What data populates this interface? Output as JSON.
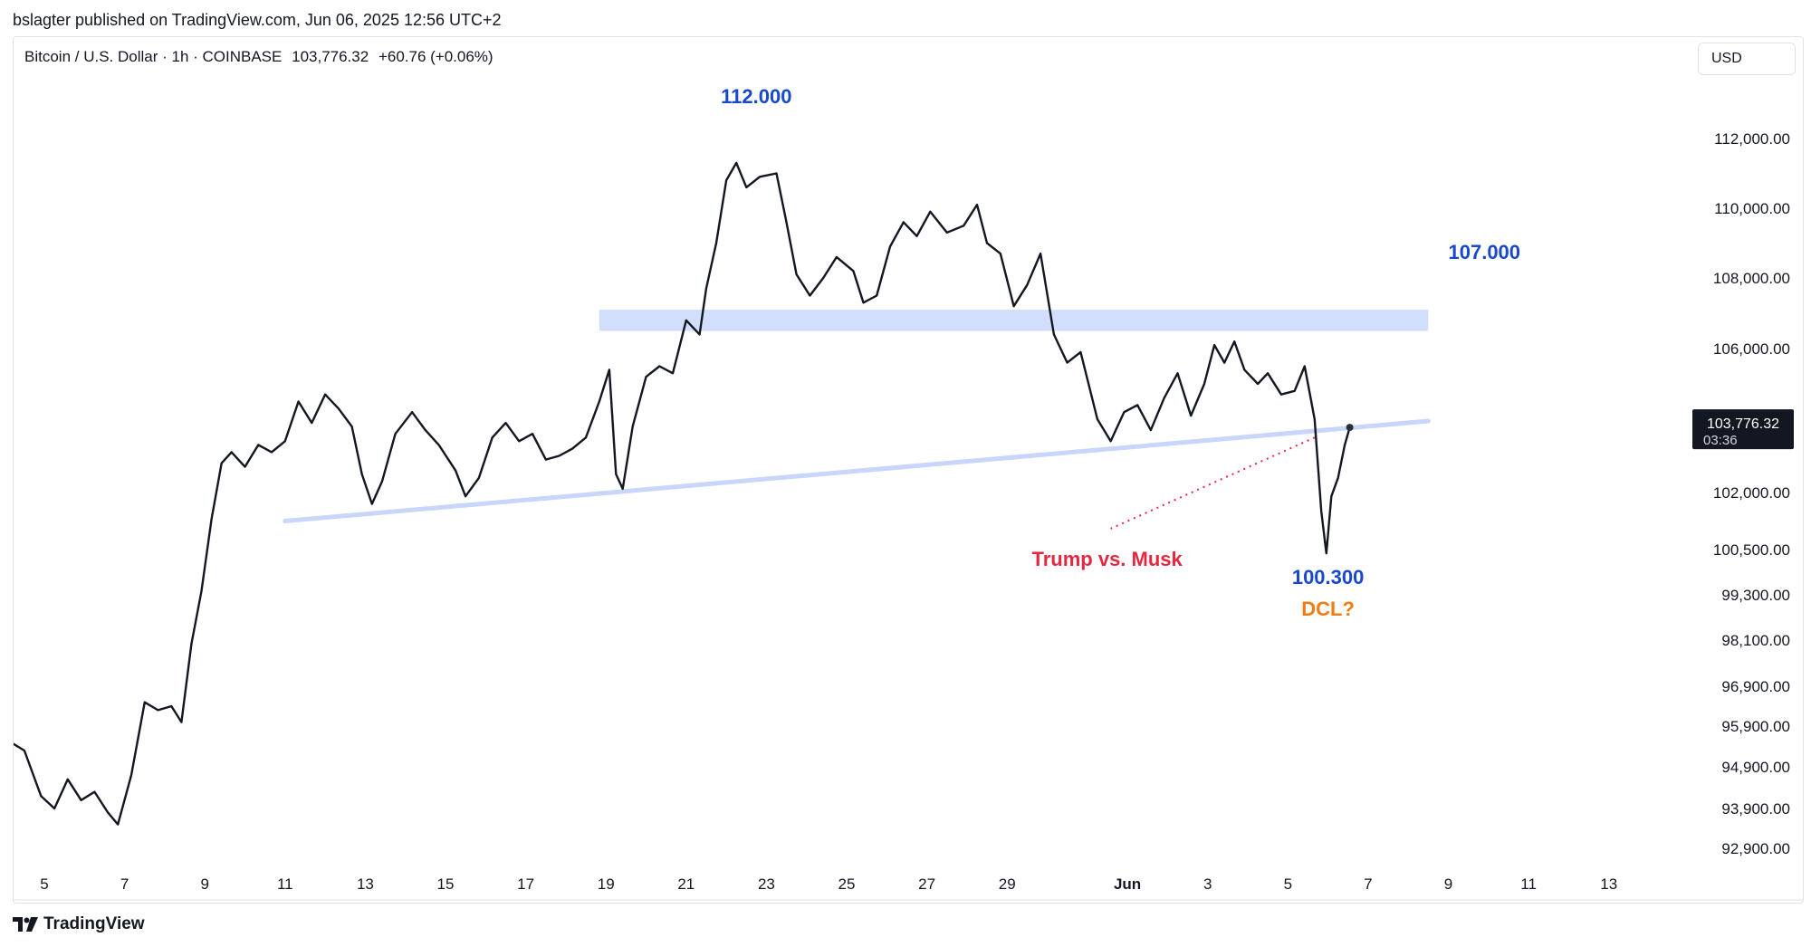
{
  "header": {
    "published_text": "bslagter published on TradingView.com, Jun 06, 2025 12:56 UTC+2"
  },
  "legend": {
    "symbol": "Bitcoin / U.S. Dollar · 1h · COINBASE",
    "price": "103,776.32",
    "change": "+60.76 (+0.06%)"
  },
  "currency_button": "USD",
  "footer": {
    "brand": "TradingView"
  },
  "colors": {
    "price_line": "#131722",
    "zone": "#c9d9fb",
    "trendline": "#c7d6f9",
    "annotation_blue": "#1848cc",
    "annotation_red": "#e5283f",
    "annotation_orange": "#f07c14",
    "label_bg": "#131722"
  },
  "chart_data": {
    "type": "line",
    "title": "",
    "x_ticks": [
      "5",
      "7",
      "9",
      "11",
      "13",
      "15",
      "17",
      "19",
      "21",
      "23",
      "25",
      "27",
      "29",
      "Jun",
      "3",
      "5",
      "7",
      "9",
      "11",
      "13"
    ],
    "y_ticks": [
      "112,000.00",
      "110,000.00",
      "108,000.00",
      "106,000.00",
      "104,000.00",
      "102,000.00",
      "100,500.00",
      "99,300.00",
      "98,100.00",
      "96,900.00",
      "95,900.00",
      "94,900.00",
      "93,900.00",
      "92,900.00"
    ],
    "current_price_label": "103,776.32",
    "countdown_label": "03:36",
    "series": [
      {
        "values": [
          [
            "May 4 00:00",
            95600
          ],
          [
            "May 4 12:00",
            95300
          ],
          [
            "May 4 22:00",
            94200
          ],
          [
            "May 5 06:00",
            93900
          ],
          [
            "May 5 14:00",
            94600
          ],
          [
            "May 5 22:00",
            94100
          ],
          [
            "May 6 06:00",
            94300
          ],
          [
            "May 6 14:00",
            93800
          ],
          [
            "May 6 20:00",
            93500
          ],
          [
            "May 7 04:00",
            94700
          ],
          [
            "May 7 12:00",
            96500
          ],
          [
            "May 7 20:00",
            96300
          ],
          [
            "May 8 04:00",
            96400
          ],
          [
            "May 8 10:00",
            96000
          ],
          [
            "May 8 16:00",
            98000
          ],
          [
            "May 8 22:00",
            99400
          ],
          [
            "May 9 04:00",
            101300
          ],
          [
            "May 9 10:00",
            102800
          ],
          [
            "May 9 16:00",
            103100
          ],
          [
            "May 10 00:00",
            102700
          ],
          [
            "May 10 08:00",
            103300
          ],
          [
            "May 10 16:00",
            103100
          ],
          [
            "May 11 00:00",
            103400
          ],
          [
            "May 11 08:00",
            104500
          ],
          [
            "May 11 16:00",
            103900
          ],
          [
            "May 12 00:00",
            104700
          ],
          [
            "May 12 08:00",
            104300
          ],
          [
            "May 12 16:00",
            103800
          ],
          [
            "May 12 22:00",
            102500
          ],
          [
            "May 13 04:00",
            101700
          ],
          [
            "May 13 10:00",
            102300
          ],
          [
            "May 13 18:00",
            103600
          ],
          [
            "May 14 04:00",
            104200
          ],
          [
            "May 14 12:00",
            103700
          ],
          [
            "May 14 20:00",
            103300
          ],
          [
            "May 15 06:00",
            102600
          ],
          [
            "May 15 12:00",
            101900
          ],
          [
            "May 15 20:00",
            102400
          ],
          [
            "May 16 04:00",
            103500
          ],
          [
            "May 16 12:00",
            103900
          ],
          [
            "May 16 20:00",
            103400
          ],
          [
            "May 17 04:00",
            103600
          ],
          [
            "May 17 12:00",
            102900
          ],
          [
            "May 17 20:00",
            103000
          ],
          [
            "May 18 04:00",
            103200
          ],
          [
            "May 18 12:00",
            103500
          ],
          [
            "May 18 20:00",
            104500
          ],
          [
            "May 19 02:00",
            105400
          ],
          [
            "May 19 06:00",
            102500
          ],
          [
            "May 19 10:00",
            102100
          ],
          [
            "May 19 16:00",
            103800
          ],
          [
            "May 20 00:00",
            105200
          ],
          [
            "May 20 08:00",
            105500
          ],
          [
            "May 20 16:00",
            105300
          ],
          [
            "May 21 00:00",
            106800
          ],
          [
            "May 21 08:00",
            106400
          ],
          [
            "May 21 12:00",
            107700
          ],
          [
            "May 21 18:00",
            109000
          ],
          [
            "May 22 00:00",
            110800
          ],
          [
            "May 22 06:00",
            111300
          ],
          [
            "May 22 12:00",
            110600
          ],
          [
            "May 22 20:00",
            110900
          ],
          [
            "May 23 06:00",
            111000
          ],
          [
            "May 23 12:00",
            109600
          ],
          [
            "May 23 18:00",
            108100
          ],
          [
            "May 24 02:00",
            107500
          ],
          [
            "May 24 10:00",
            108000
          ],
          [
            "May 24 18:00",
            108600
          ],
          [
            "May 25 04:00",
            108200
          ],
          [
            "May 25 10:00",
            107300
          ],
          [
            "May 25 18:00",
            107500
          ],
          [
            "May 26 02:00",
            108900
          ],
          [
            "May 26 10:00",
            109600
          ],
          [
            "May 26 18:00",
            109200
          ],
          [
            "May 27 02:00",
            109900
          ],
          [
            "May 27 12:00",
            109300
          ],
          [
            "May 27 22:00",
            109500
          ],
          [
            "May 28 06:00",
            110100
          ],
          [
            "May 28 12:00",
            109000
          ],
          [
            "May 28 20:00",
            108700
          ],
          [
            "May 29 04:00",
            107200
          ],
          [
            "May 29 12:00",
            107800
          ],
          [
            "May 29 20:00",
            108700
          ],
          [
            "May 30 04:00",
            106400
          ],
          [
            "May 30 12:00",
            105600
          ],
          [
            "May 30 20:00",
            105900
          ],
          [
            "May 31 06:00",
            104000
          ],
          [
            "May 31 14:00",
            103400
          ],
          [
            "May 31 22:00",
            104200
          ],
          [
            "Jun 1 06:00",
            104400
          ],
          [
            "Jun 1 14:00",
            103700
          ],
          [
            "Jun 1 22:00",
            104600
          ],
          [
            "Jun 2 06:00",
            105300
          ],
          [
            "Jun 2 14:00",
            104100
          ],
          [
            "Jun 2 22:00",
            105000
          ],
          [
            "Jun 3 04:00",
            106100
          ],
          [
            "Jun 3 10:00",
            105600
          ],
          [
            "Jun 3 16:00",
            106200
          ],
          [
            "Jun 3 22:00",
            105400
          ],
          [
            "Jun 4 06:00",
            105000
          ],
          [
            "Jun 4 12:00",
            105300
          ],
          [
            "Jun 4 20:00",
            104700
          ],
          [
            "Jun 5 04:00",
            104800
          ],
          [
            "Jun 5 10:00",
            105500
          ],
          [
            "Jun 5 16:00",
            104000
          ],
          [
            "Jun 5 20:00",
            101500
          ],
          [
            "Jun 5 23:00",
            100400
          ],
          [
            "Jun 6 02:00",
            101900
          ],
          [
            "Jun 6 06:00",
            102400
          ],
          [
            "Jun 6 10:00",
            103300
          ],
          [
            "Jun 6 13:00",
            103776
          ]
        ]
      }
    ],
    "annotations": [
      {
        "text": "112.000"
      },
      {
        "text": "107.000"
      },
      {
        "text": "100.300"
      },
      {
        "text": "Trump vs. Musk"
      },
      {
        "text": "DCL?"
      }
    ],
    "grid": false
  }
}
